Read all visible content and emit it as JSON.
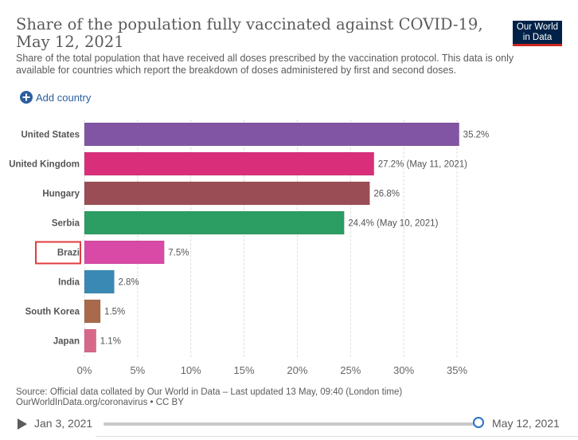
{
  "header": {
    "title": "Share of the population fully vaccinated against COVID-19, May 12, 2021",
    "subtitle": "Share of the total population that have received all doses prescribed by the vaccination protocol. This data is only available for countries which report the breakdown of doses administered by first and second doses.",
    "logo_line1": "Our World",
    "logo_line2": "in Data"
  },
  "controls": {
    "add_country_label": "Add country"
  },
  "chart_data": {
    "type": "bar",
    "orientation": "horizontal",
    "title": "Share of the population fully vaccinated against COVID-19, May 12, 2021",
    "xlabel": "",
    "ylabel": "",
    "xlim": [
      0,
      35
    ],
    "x_ticks": [
      "0%",
      "5%",
      "10%",
      "15%",
      "20%",
      "25%",
      "30%",
      "35%"
    ],
    "categories": [
      "United States",
      "United Kingdom",
      "Hungary",
      "Serbia",
      "Brazi",
      "India",
      "South Korea",
      "Japan"
    ],
    "values": [
      35.2,
      27.2,
      26.8,
      24.4,
      7.5,
      2.8,
      1.5,
      1.1
    ],
    "value_labels": [
      "35.2%",
      "27.2% (May 11, 2021)",
      "26.8%",
      "24.4% (May 10, 2021)",
      "7.5%",
      "2.8%",
      "1.5%",
      "1.1%"
    ],
    "colors": [
      "#8155a3",
      "#d92f7a",
      "#9b4d55",
      "#2d9e63",
      "#d84aa5",
      "#3a89b5",
      "#a86a4a",
      "#d8688a"
    ],
    "highlighted_category": "Brazi",
    "highlight_color": "#e03e3e",
    "grid": true
  },
  "footer": {
    "source_line1": "Source: Official data collated by Our World in Data – Last updated 13 May, 09:40 (London time)",
    "source_line2": "OurWorldInData.org/coronavirus • CC BY"
  },
  "timeline": {
    "start": "Jan 3, 2021",
    "end": "May 12, 2021"
  }
}
